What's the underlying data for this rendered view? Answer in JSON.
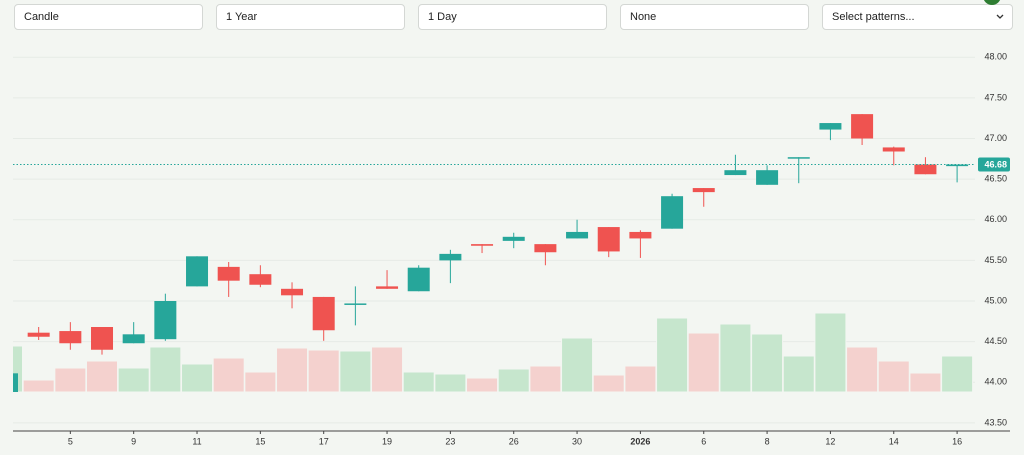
{
  "controls": [
    "Candle",
    "1 Year",
    "1 Day",
    "None",
    "Select patterns..."
  ],
  "chart_data": {
    "type": "candlestick",
    "categories": [
      null,
      null,
      "5",
      null,
      "9",
      null,
      "11",
      null,
      "15",
      null,
      "17",
      null,
      "19",
      null,
      "23",
      null,
      "26",
      null,
      "30",
      null,
      "2026",
      null,
      "6",
      null,
      "8",
      null,
      "12",
      null,
      "14",
      null,
      "16"
    ],
    "open": [
      43.88,
      44.61,
      44.63,
      44.68,
      44.48,
      44.53,
      45.18,
      45.42,
      45.33,
      45.15,
      45.05,
      44.96,
      45.18,
      45.12,
      45.5,
      45.7,
      45.74,
      45.7,
      45.77,
      45.91,
      45.85,
      45.89,
      46.39,
      46.55,
      46.43,
      46.76,
      47.11,
      47.3,
      46.89,
      46.68,
      46.66
    ],
    "high": [
      44.11,
      44.68,
      44.74,
      44.68,
      44.74,
      45.09,
      45.55,
      45.48,
      45.44,
      45.23,
      45.05,
      45.18,
      45.38,
      45.44,
      45.63,
      45.7,
      45.84,
      45.7,
      46.0,
      45.91,
      45.87,
      46.32,
      46.39,
      46.8,
      46.67,
      46.77,
      47.19,
      47.3,
      46.9,
      46.77,
      46.68
    ],
    "low": [
      43.88,
      44.52,
      44.4,
      44.34,
      44.48,
      44.51,
      45.18,
      45.05,
      45.17,
      44.91,
      44.51,
      44.7,
      45.15,
      45.12,
      45.22,
      45.59,
      45.65,
      45.44,
      45.77,
      45.54,
      45.53,
      45.89,
      46.16,
      46.55,
      46.43,
      46.45,
      46.98,
      46.92,
      46.67,
      46.56,
      46.46
    ],
    "close": [
      44.11,
      44.56,
      44.48,
      44.4,
      44.59,
      45.0,
      45.55,
      45.25,
      45.2,
      45.07,
      44.64,
      44.97,
      45.15,
      45.41,
      45.58,
      45.68,
      45.79,
      45.6,
      45.85,
      45.61,
      45.77,
      46.29,
      46.34,
      46.61,
      46.61,
      46.77,
      47.19,
      47.0,
      46.84,
      46.56,
      46.68
    ],
    "volume": [
      46,
      12,
      24,
      31,
      24,
      45,
      28,
      34,
      20,
      44,
      42,
      41,
      45,
      20,
      18,
      14,
      23,
      26,
      54,
      17,
      26,
      74,
      59,
      68,
      58,
      36,
      79,
      45,
      31,
      19,
      36
    ],
    "volume_ylim": [
      0,
      100
    ],
    "last_price": 46.68,
    "up_color": "#26a69a",
    "down_color": "#ef5350",
    "volume_up_color": "#c6e6cd",
    "volume_down_color": "#f4d1ce",
    "ylim": [
      43.4,
      48.2
    ],
    "yticks": [
      {
        "value": 48,
        "label": "48.00"
      },
      {
        "value": 47.5,
        "label": "47.50"
      },
      {
        "value": 47,
        "label": "47.00"
      },
      {
        "value": 46.5,
        "label": "46.50"
      },
      {
        "value": 46,
        "label": "46.00"
      },
      {
        "value": 45.5,
        "label": "45.50"
      },
      {
        "value": 45,
        "label": "45.00"
      },
      {
        "value": 44.5,
        "label": "44.50"
      },
      {
        "value": 44,
        "label": "44.00"
      },
      {
        "value": 43.5,
        "label": "43.50"
      }
    ],
    "grid": true
  }
}
